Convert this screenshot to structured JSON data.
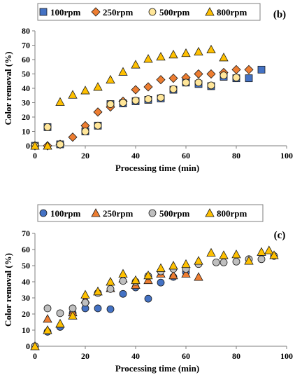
{
  "chart_data": [
    {
      "type": "scatter",
      "panel_label": "(b)",
      "xlabel": "Processing time (min)",
      "ylabel": "Color removal (%)",
      "xlim": [
        0,
        100
      ],
      "ylim": [
        0,
        80
      ],
      "xticks": [
        0,
        20,
        40,
        60,
        80,
        100
      ],
      "yticks": [
        0,
        10,
        20,
        30,
        40,
        50,
        60,
        70,
        80
      ],
      "grid": false,
      "legend": "top",
      "series": [
        {
          "name": "100rpm",
          "marker": "square",
          "color": "#4472C4",
          "x": [
            0,
            5,
            10,
            20,
            25,
            30,
            35,
            40,
            45,
            50,
            55,
            60,
            65,
            70,
            75,
            80,
            85,
            90
          ],
          "y": [
            0,
            13,
            1,
            10,
            14,
            29,
            29.5,
            31,
            32,
            33,
            39,
            44,
            43,
            41.5,
            48,
            47,
            47,
            53
          ]
        },
        {
          "name": "250rpm",
          "marker": "diamond",
          "color": "#ED7D31",
          "x": [
            0,
            5,
            10,
            15,
            20,
            25,
            30,
            35,
            40,
            45,
            50,
            55,
            60,
            65,
            70,
            75,
            80,
            85
          ],
          "y": [
            0,
            0,
            1,
            6,
            14,
            23.5,
            27,
            31,
            39,
            41,
            46,
            47,
            47.5,
            50,
            50,
            51,
            53,
            53
          ]
        },
        {
          "name": "500rpm",
          "marker": "circle",
          "color": "#FFE699",
          "x": [
            0,
            5,
            10,
            20,
            25,
            30,
            35,
            40,
            45,
            50,
            55,
            60,
            65,
            70,
            75,
            80
          ],
          "y": [
            0,
            13,
            1,
            10,
            14,
            29,
            30,
            31.5,
            32.5,
            33.5,
            39.5,
            44,
            44,
            42,
            49,
            47.5
          ]
        },
        {
          "name": "800rpm",
          "marker": "triangle",
          "color": "#FFC000",
          "x": [
            0,
            5,
            10,
            15,
            20,
            25,
            30,
            35,
            40,
            45,
            50,
            55,
            60,
            65,
            70,
            75
          ],
          "y": [
            0,
            0,
            30.5,
            35.5,
            38.5,
            41,
            46,
            51.5,
            56.5,
            60.5,
            62,
            63.5,
            64.5,
            65.5,
            67,
            61.5
          ]
        }
      ]
    },
    {
      "type": "scatter",
      "panel_label": "(c)",
      "xlabel": "Processing time (min)",
      "ylabel": "Color removal (%)",
      "xlim": [
        0,
        100
      ],
      "ylim": [
        0,
        70
      ],
      "xticks": [
        0,
        20,
        40,
        60,
        80,
        100
      ],
      "yticks": [
        0,
        10,
        20,
        30,
        40,
        50,
        60,
        70
      ],
      "grid": false,
      "legend": "top",
      "series": [
        {
          "name": "100rpm",
          "marker": "circle",
          "color": "#4472C4",
          "x": [
            0,
            5,
            10,
            15,
            20,
            25,
            30,
            35,
            40,
            45,
            50,
            55,
            60
          ],
          "y": [
            0,
            9,
            12,
            20.5,
            23.5,
            23.5,
            23,
            32.5,
            36.5,
            29.5,
            39.5,
            43,
            46
          ]
        },
        {
          "name": "250rpm",
          "marker": "triangle",
          "color": "#ED7D31",
          "x": [
            0,
            5,
            10,
            15,
            20,
            25,
            30,
            35,
            40,
            45,
            50,
            55,
            60,
            65
          ],
          "y": [
            0,
            17,
            14,
            21,
            29,
            34,
            36,
            42,
            38,
            41,
            45,
            44,
            45,
            43
          ]
        },
        {
          "name": "500rpm",
          "marker": "circle",
          "color": "#BFBFBF",
          "x": [
            0,
            5,
            10,
            15,
            20,
            25,
            30,
            35,
            40,
            45,
            50,
            55,
            60,
            65,
            72,
            75,
            80,
            85,
            90,
            95
          ],
          "y": [
            0,
            23.5,
            20.5,
            23.5,
            27,
            33,
            35.5,
            40.5,
            40,
            43.5,
            46.5,
            48,
            48,
            51,
            52,
            52,
            52.5,
            54,
            54,
            56
          ]
        },
        {
          "name": "800rpm",
          "marker": "triangle",
          "color": "#FFC000",
          "x": [
            0,
            5,
            10,
            15,
            20,
            25,
            30,
            35,
            40,
            45,
            50,
            55,
            60,
            65,
            70,
            75,
            80,
            85,
            90,
            93,
            95
          ],
          "y": [
            0,
            10,
            14,
            19,
            32,
            34,
            40,
            45,
            41,
            44,
            48.5,
            50,
            51,
            53,
            58,
            56.5,
            57,
            53,
            58.5,
            59.5,
            56.5
          ]
        }
      ]
    }
  ]
}
